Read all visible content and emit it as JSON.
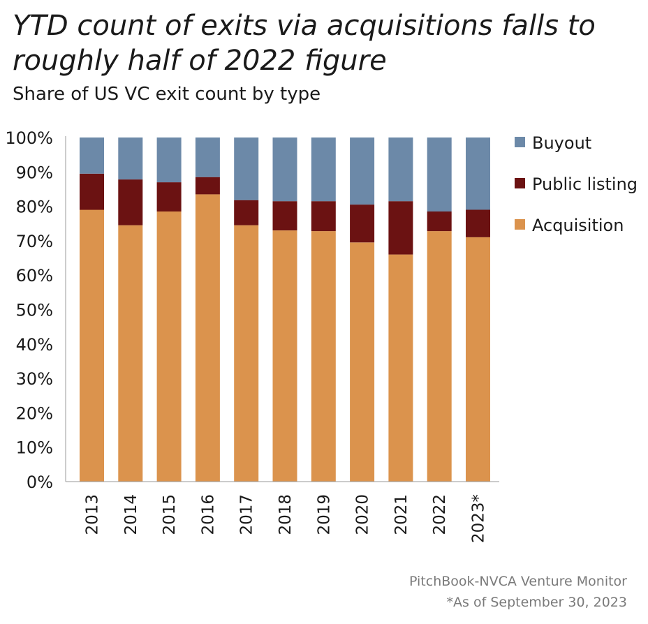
{
  "title": "YTD count of exits via acquisitions falls to roughly half of 2022 figure",
  "subtitle": "Share of US VC exit count by type",
  "source": "PitchBook-NVCA Venture Monitor",
  "note": "*As of September 30, 2023",
  "colors": {
    "Acquisition": "#db934d",
    "Public listing": "#6b1212",
    "Buyout": "#6c89a8",
    "axis": "#999999"
  },
  "chart_data": {
    "type": "bar",
    "stacked": true,
    "categories": [
      "2013",
      "2014",
      "2015",
      "2016",
      "2017",
      "2018",
      "2019",
      "2020",
      "2021",
      "2022",
      "2023*"
    ],
    "series": [
      {
        "name": "Acquisition",
        "values": [
          79.0,
          74.5,
          78.5,
          83.5,
          74.5,
          73.0,
          72.8,
          69.5,
          66.0,
          72.8,
          71.0
        ]
      },
      {
        "name": "Public listing",
        "values": [
          10.5,
          13.3,
          8.5,
          5.0,
          7.3,
          8.5,
          8.7,
          11.0,
          15.5,
          5.7,
          8.0
        ]
      },
      {
        "name": "Buyout",
        "values": [
          10.5,
          12.2,
          13.0,
          11.5,
          18.2,
          18.5,
          18.5,
          19.5,
          18.5,
          21.5,
          21.0
        ]
      }
    ],
    "yticks": [
      "0%",
      "10%",
      "20%",
      "30%",
      "40%",
      "50%",
      "60%",
      "70%",
      "80%",
      "90%",
      "100%"
    ],
    "ylim": [
      0,
      100
    ],
    "legend": [
      "Buyout",
      "Public listing",
      "Acquisition"
    ],
    "legend_position": "right",
    "grid": false
  }
}
